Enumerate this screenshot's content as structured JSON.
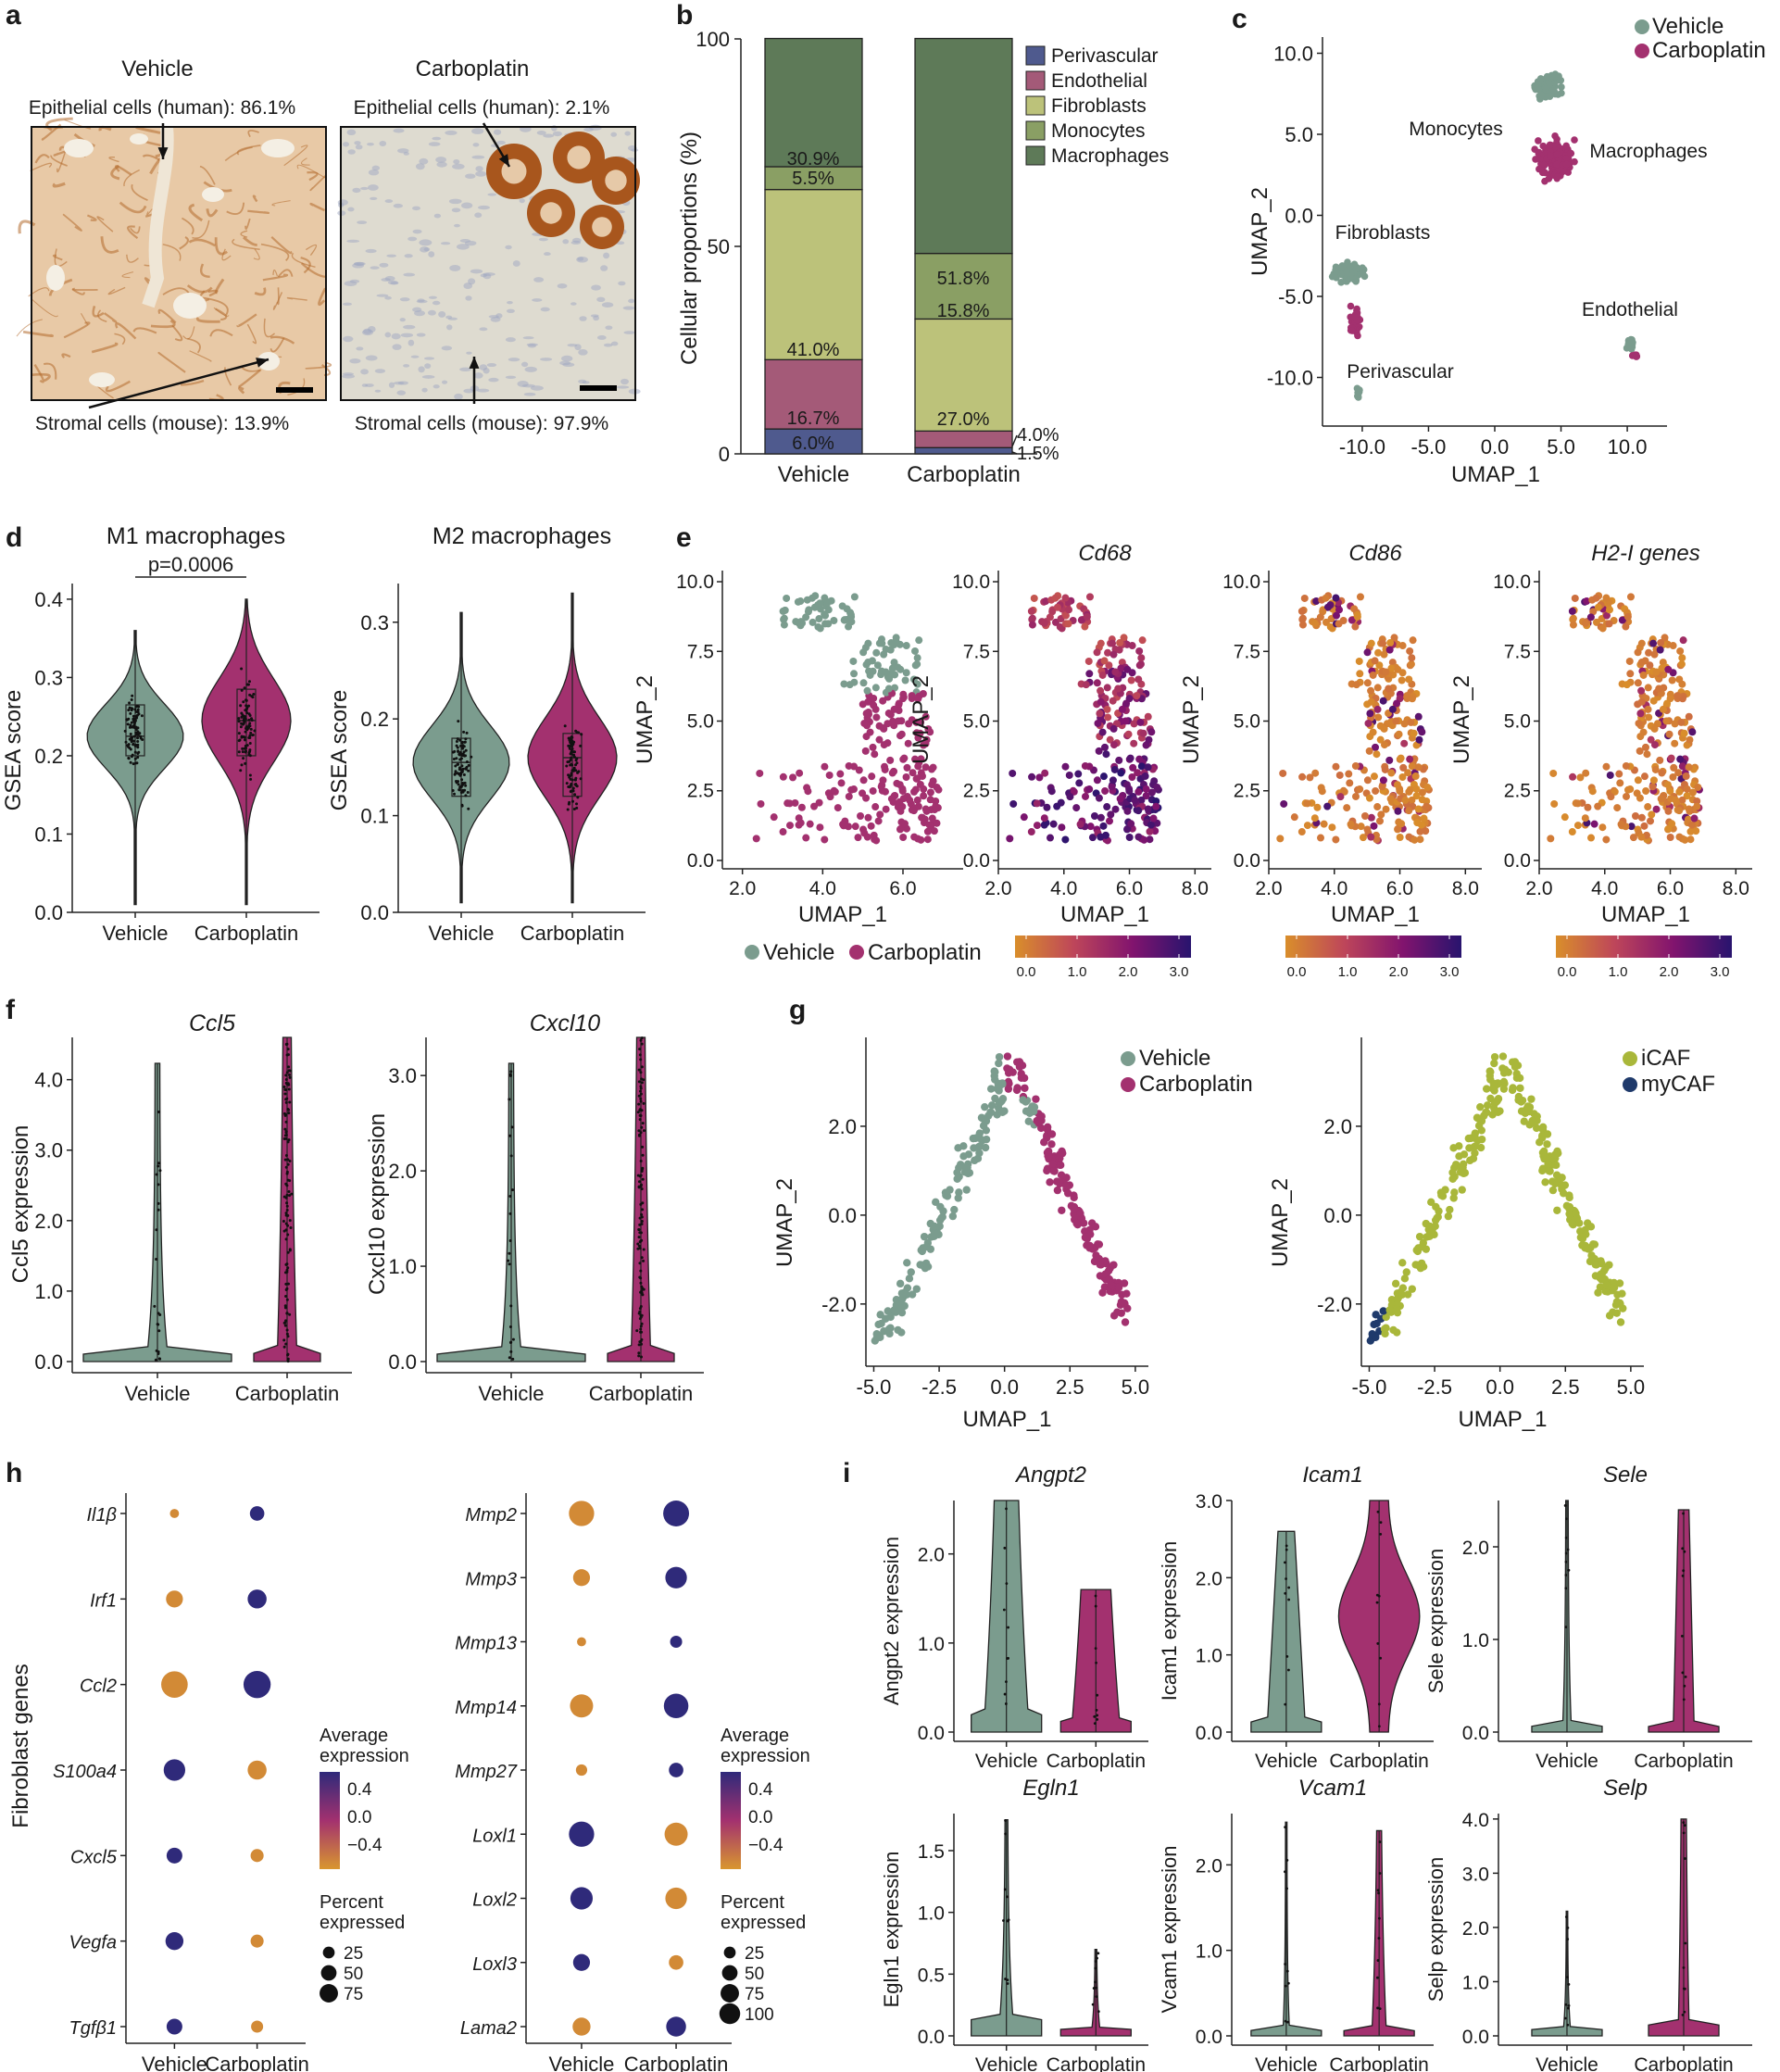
{
  "colors": {
    "vehicle": "#7b9c8e",
    "carboplatin": "#a3316f",
    "perivascular": "#4f5a8e",
    "endothelial": "#a45a78",
    "fibroblasts": "#bcc27a",
    "monocytes": "#8a9f64",
    "macrophages": "#5e7a58",
    "icaf": "#a9b73a",
    "mycaf": "#1f3a6b",
    "tissue_left": "#d9a27a",
    "tissue_right": "#dcd9cc"
  },
  "panels": [
    "a",
    "b",
    "c",
    "d",
    "e",
    "f",
    "g",
    "h",
    "i"
  ],
  "panel_a": {
    "vehicle_title": "Vehicle",
    "carboplatin_title": "Carboplatin",
    "vehicle_epithelial": "Epithelial cells (human): 86.1%",
    "vehicle_stromal": "Stromal cells (mouse): 13.9%",
    "carbo_epithelial": "Epithelial cells (human): 2.1%",
    "carbo_stromal": "Stromal cells (mouse): 97.9%"
  },
  "chart_data": [
    {
      "id": "b",
      "type": "bar",
      "stacked": true,
      "categories": [
        "Vehicle",
        "Carboplatin"
      ],
      "ylabel": "Cellular proportions (%)",
      "ylim": [
        0,
        100
      ],
      "yticks": [
        "0",
        "50",
        "100"
      ],
      "series": [
        {
          "name": "Perivascular",
          "values": [
            6.0,
            1.5
          ],
          "labels": [
            "6.0%",
            "1.5%"
          ]
        },
        {
          "name": "Endothelial",
          "values": [
            16.7,
            4.0
          ],
          "labels": [
            "16.7%",
            "4.0%"
          ]
        },
        {
          "name": "Fibroblasts",
          "values": [
            41.0,
            27.0
          ],
          "labels": [
            "41.0%",
            "27.0%"
          ]
        },
        {
          "name": "Monocytes",
          "values": [
            5.5,
            15.8
          ],
          "labels": [
            "5.5%",
            "15.8%"
          ]
        },
        {
          "name": "Macrophages",
          "values": [
            30.9,
            51.8
          ],
          "labels": [
            "30.9%",
            "51.8%"
          ]
        }
      ],
      "legend": "right"
    },
    {
      "id": "c",
      "type": "scatter",
      "xlabel": "UMAP_1",
      "ylabel": "UMAP_2",
      "xticks": [
        "-10.0",
        "-5.0",
        "0.0",
        "5.0",
        "10.0"
      ],
      "yticks": [
        "-10.0",
        "-5.0",
        "0.0",
        "5.0",
        "10.0"
      ],
      "xlim": [
        -13,
        13
      ],
      "ylim": [
        -13,
        11
      ],
      "legend": [
        "Vehicle",
        "Carboplatin"
      ],
      "cluster_labels": [
        "Monocytes",
        "Macrophages",
        "Fibroblasts",
        "Endothelial",
        "Perivascular"
      ]
    },
    {
      "id": "d",
      "type": "violin",
      "titles": [
        "M1 macrophages",
        "M2 macrophages"
      ],
      "ylabel": "GSEA score",
      "categories": [
        "Vehicle",
        "Carboplatin"
      ],
      "annotation": "p=0.0006",
      "m1": {
        "ylim": [
          0,
          0.42
        ],
        "yticks": [
          "0.0",
          "0.1",
          "0.2",
          "0.3",
          "0.4"
        ],
        "median": [
          0.225,
          0.245
        ],
        "q1": [
          0.2,
          0.2
        ],
        "q3": [
          0.265,
          0.285
        ],
        "min": [
          0.01,
          0.01
        ],
        "max": [
          0.36,
          0.4
        ]
      },
      "m2": {
        "ylim": [
          0,
          0.34
        ],
        "yticks": [
          "0.0",
          "0.1",
          "0.2",
          "0.3"
        ],
        "median": [
          0.155,
          0.16
        ],
        "q1": [
          0.12,
          0.12
        ],
        "q3": [
          0.18,
          0.185
        ],
        "min": [
          0.01,
          0.01
        ],
        "max": [
          0.31,
          0.33
        ]
      }
    },
    {
      "id": "e",
      "type": "scatter",
      "titles": [
        "",
        "Cd68",
        "Cd86",
        "H2-I genes"
      ],
      "xlabel": "UMAP_1",
      "ylabel": "UMAP_2",
      "xticks_first": [
        "2.0",
        "4.0",
        "6.0"
      ],
      "xticks": [
        "2.0",
        "4.0",
        "6.0",
        "8.0"
      ],
      "yticks": [
        "0.0",
        "2.5",
        "5.0",
        "7.5",
        "10.0"
      ],
      "legend": [
        "Vehicle",
        "Carboplatin"
      ],
      "colorbar_ticks": [
        "0.0",
        "1.0",
        "2.0",
        "3.0"
      ]
    },
    {
      "id": "f",
      "type": "violin",
      "titles": [
        "Ccl5",
        "Cxcl10"
      ],
      "ylabels": [
        "Ccl5 expression",
        "Cxcl10 expression"
      ],
      "categories": [
        "Vehicle",
        "Carboplatin"
      ],
      "ccl5": {
        "ylim": [
          0,
          4.6
        ],
        "yticks": [
          "0.0",
          "1.0",
          "2.0",
          "3.0",
          "4.0"
        ]
      },
      "cxcl10": {
        "ylim": [
          0,
          3.4
        ],
        "yticks": [
          "0.0",
          "1.0",
          "2.0",
          "3.0"
        ]
      }
    },
    {
      "id": "g",
      "type": "scatter",
      "xlabel": "UMAP_1",
      "ylabel": "UMAP_2",
      "xticks": [
        "-5.0",
        "-2.5",
        "0.0",
        "2.5",
        "5.0"
      ],
      "yticks": [
        "-2.0",
        "0.0",
        "2.0"
      ],
      "legends": [
        [
          "Vehicle",
          "Carboplatin"
        ],
        [
          "iCAF",
          "myCAF"
        ]
      ]
    },
    {
      "id": "h",
      "type": "dot",
      "ylabel": "Fibroblast genes",
      "categories": [
        "Vehicle",
        "Carboplatin"
      ],
      "genes_left": [
        "Il1β",
        "Irf1",
        "Ccl2",
        "S100a4",
        "Cxcl5",
        "Vegfa",
        "Tgfβ1"
      ],
      "avg_left": [
        [
          -0.4,
          0.4
        ],
        [
          -0.4,
          0.4
        ],
        [
          -0.4,
          0.4
        ],
        [
          0.4,
          -0.4
        ],
        [
          0.4,
          -0.4
        ],
        [
          0.4,
          -0.4
        ],
        [
          0.4,
          -0.4
        ]
      ],
      "pct_left": [
        [
          5,
          20
        ],
        [
          30,
          40
        ],
        [
          90,
          95
        ],
        [
          55,
          40
        ],
        [
          25,
          15
        ],
        [
          35,
          15
        ],
        [
          25,
          12
        ]
      ],
      "genes_right": [
        "Mmp2",
        "Mmp3",
        "Mmp13",
        "Mmp14",
        "Mmp27",
        "Loxl1",
        "Loxl2",
        "Loxl3",
        "Lama2"
      ],
      "avg_right": [
        [
          -0.4,
          0.4
        ],
        [
          -0.4,
          0.4
        ],
        [
          -0.4,
          0.4
        ],
        [
          -0.4,
          0.4
        ],
        [
          -0.4,
          0.4
        ],
        [
          0.4,
          -0.4
        ],
        [
          0.4,
          -0.4
        ],
        [
          0.4,
          -0.4
        ],
        [
          -0.4,
          0.4
        ]
      ],
      "pct_right": [
        [
          80,
          85
        ],
        [
          30,
          55
        ],
        [
          5,
          12
        ],
        [
          65,
          75
        ],
        [
          10,
          20
        ],
        [
          80,
          65
        ],
        [
          60,
          55
        ],
        [
          30,
          20
        ],
        [
          35,
          45
        ]
      ],
      "legend_title": "Average expression",
      "legend_ticks": [
        "0.4",
        "0.0",
        "−0.4"
      ],
      "size_title": "Percent expressed",
      "size_ticks_left": [
        "25",
        "50",
        "75"
      ],
      "size_ticks_right": [
        "25",
        "50",
        "75",
        "100"
      ]
    },
    {
      "id": "i",
      "type": "violin",
      "titles": [
        "Angpt2",
        "Icam1",
        "Sele",
        "Egln1",
        "Vcam1",
        "Selp"
      ],
      "ylabels": [
        "Angpt2 expression",
        "Icam1 expression",
        "Sele expression",
        "Egln1 expression",
        "Vcam1 expression",
        "Selp expression"
      ],
      "categories": [
        "Vehicle",
        "Carboplatin"
      ],
      "yticks": [
        [
          "0.0",
          "1.0",
          "2.0"
        ],
        [
          "0.0",
          "1.0",
          "2.0",
          "3.0"
        ],
        [
          "0.0",
          "1.0",
          "2.0"
        ],
        [
          "0.0",
          "0.5",
          "1.0",
          "1.5"
        ],
        [
          "0.0",
          "1.0",
          "2.0"
        ],
        [
          "0.0",
          "1.0",
          "2.0",
          "3.0",
          "4.0"
        ]
      ],
      "ylims": [
        [
          0,
          2.6
        ],
        [
          0,
          3.0
        ],
        [
          0,
          2.5
        ],
        [
          0,
          1.8
        ],
        [
          0,
          2.6
        ],
        [
          0,
          4.1
        ]
      ]
    }
  ]
}
